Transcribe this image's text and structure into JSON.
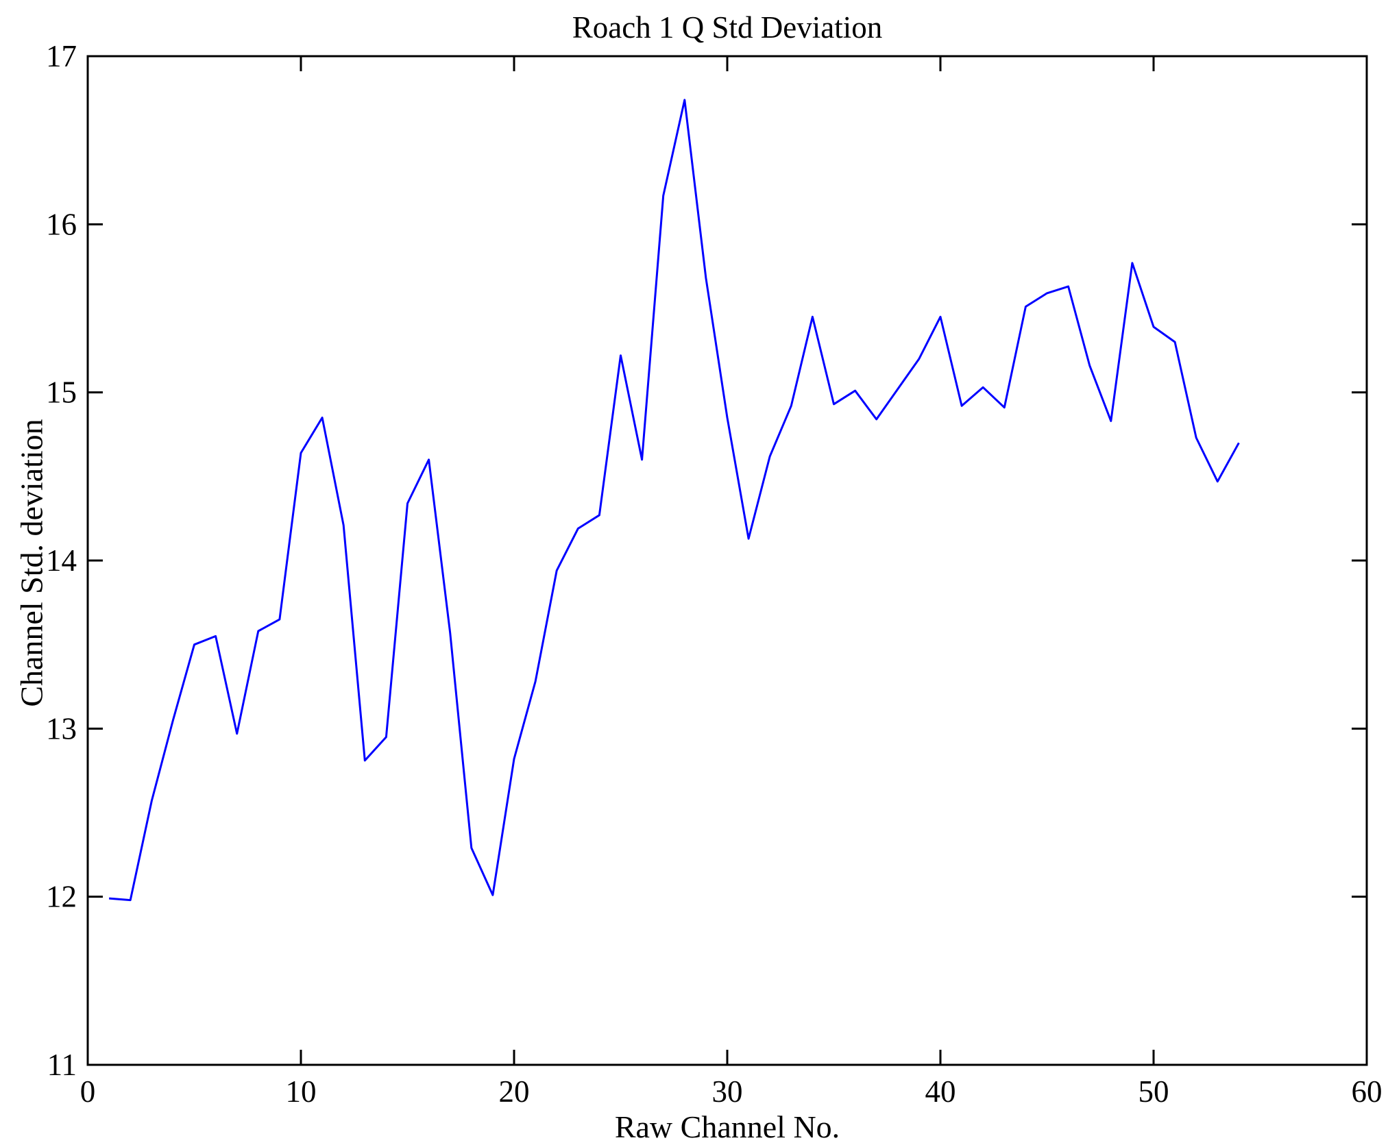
{
  "chart_data": {
    "type": "line",
    "title": "Roach 1 Q Std Deviation",
    "xlabel": "Raw Channel No.",
    "ylabel": "Channel Std. deviation",
    "xlim": [
      0,
      60
    ],
    "ylim": [
      11,
      17
    ],
    "xticks": [
      0,
      10,
      20,
      30,
      40,
      50,
      60
    ],
    "yticks": [
      11,
      12,
      13,
      14,
      15,
      16,
      17
    ],
    "grid": false,
    "box": true,
    "legend": "none",
    "line_color": "#0000FF",
    "axis_color": "#000000",
    "x": [
      1,
      2,
      3,
      4,
      5,
      6,
      7,
      8,
      9,
      10,
      11,
      12,
      13,
      14,
      15,
      16,
      17,
      18,
      19,
      20,
      21,
      22,
      23,
      24,
      25,
      26,
      27,
      28,
      29,
      30,
      31,
      32,
      33,
      34,
      35,
      36,
      37,
      38,
      39,
      40,
      41,
      42,
      43,
      44,
      45,
      46,
      47,
      48,
      49,
      50,
      51,
      52,
      53,
      54
    ],
    "y": [
      11.99,
      11.98,
      12.57,
      13.05,
      13.5,
      13.55,
      12.97,
      13.58,
      13.65,
      14.64,
      14.85,
      14.21,
      12.81,
      12.95,
      14.34,
      14.6,
      13.57,
      12.29,
      12.01,
      12.82,
      13.28,
      13.94,
      14.19,
      14.27,
      15.22,
      14.6,
      16.17,
      16.74,
      15.68,
      14.85,
      14.13,
      14.62,
      14.92,
      15.45,
      14.93,
      15.01,
      14.84,
      15.02,
      15.2,
      15.45,
      14.92,
      15.03,
      14.91,
      15.51,
      15.59,
      15.63,
      15.16,
      14.83,
      15.77,
      15.39,
      15.3,
      14.73,
      14.47,
      14.7
    ]
  }
}
